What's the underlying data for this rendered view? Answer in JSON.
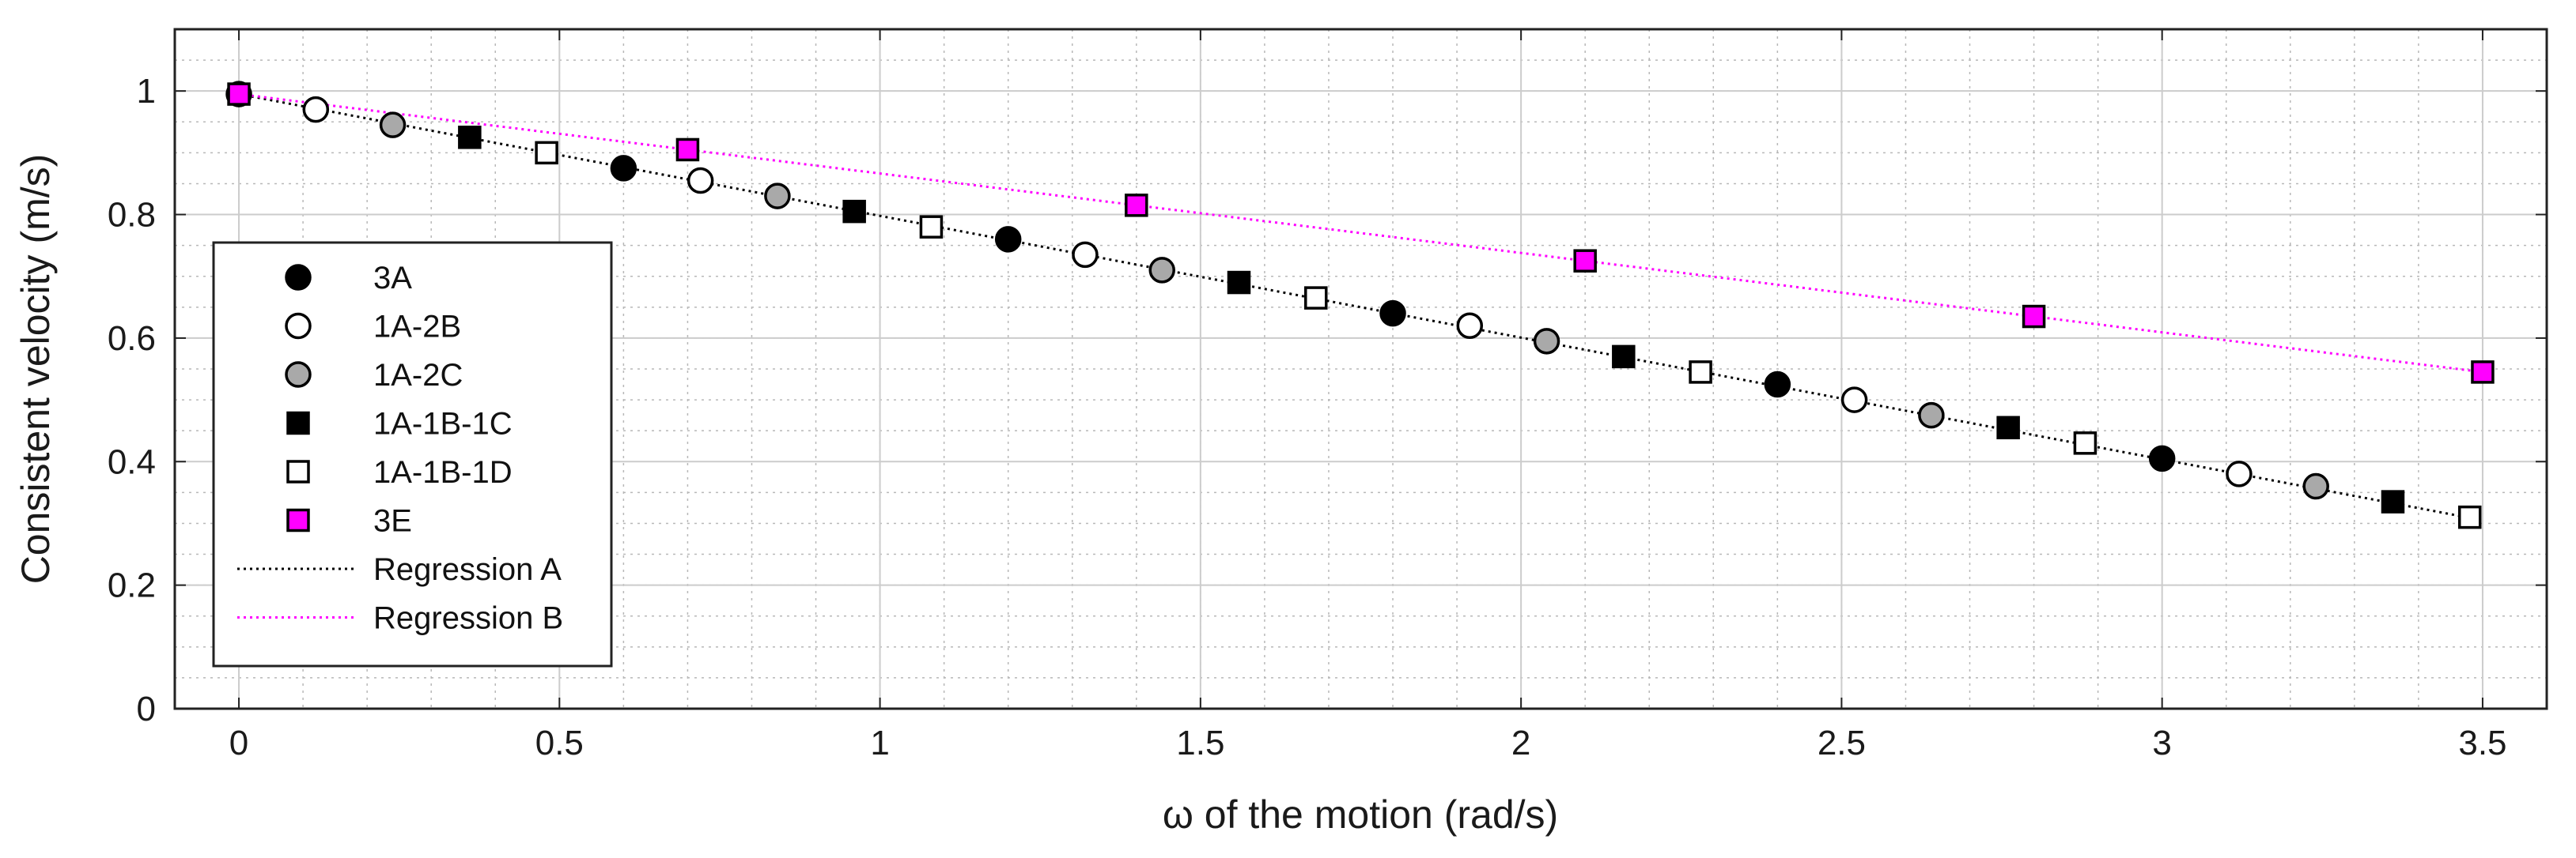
{
  "chart_data": {
    "type": "scatter",
    "xlabel": "ω of the motion (rad/s)",
    "ylabel": "Consistent velocity (m/s)",
    "xlim": [
      -0.1,
      3.6
    ],
    "ylim": [
      0,
      1.1
    ],
    "xticks": [
      0,
      0.5,
      1,
      1.5,
      2,
      2.5,
      3,
      3.5
    ],
    "xtick_labels": [
      "0",
      "0.5",
      "1",
      "1.5",
      "2",
      "2.5",
      "3",
      "3.5"
    ],
    "yticks": [
      0,
      0.2,
      0.4,
      0.6,
      0.8,
      1
    ],
    "ytick_labels": [
      "0",
      "0.2",
      "0.4",
      "0.6",
      "0.8",
      "1"
    ],
    "grid": true,
    "minor_grid": true,
    "legend_position": "left",
    "series": [
      {
        "name": "3A",
        "marker": "circle",
        "fill": "#000000",
        "x": [
          0,
          0.6,
          1.2,
          1.8,
          2.4,
          3.0
        ],
        "y": [
          0.995,
          0.875,
          0.76,
          0.64,
          0.525,
          0.405
        ]
      },
      {
        "name": "1A-2B",
        "marker": "circle",
        "fill": "#ffffff",
        "x": [
          0.12,
          0.72,
          1.32,
          1.92,
          2.52,
          3.12
        ],
        "y": [
          0.97,
          0.855,
          0.735,
          0.62,
          0.5,
          0.38
        ]
      },
      {
        "name": "1A-2C",
        "marker": "circle",
        "fill": "#a9a9a9",
        "x": [
          0.24,
          0.84,
          1.44,
          2.04,
          2.64,
          3.24
        ],
        "y": [
          0.945,
          0.83,
          0.71,
          0.595,
          0.475,
          0.36
        ]
      },
      {
        "name": "1A-1B-1C",
        "marker": "square",
        "fill": "#000000",
        "x": [
          0.36,
          0.96,
          1.56,
          2.16,
          2.76,
          3.36
        ],
        "y": [
          0.925,
          0.805,
          0.69,
          0.57,
          0.455,
          0.335
        ]
      },
      {
        "name": "1A-1B-1D",
        "marker": "square",
        "fill": "#ffffff",
        "x": [
          0.48,
          1.08,
          1.68,
          2.28,
          2.88,
          3.48
        ],
        "y": [
          0.9,
          0.78,
          0.665,
          0.545,
          0.43,
          0.31
        ]
      },
      {
        "name": "3E",
        "marker": "square",
        "fill": "#ff00ff",
        "x": [
          0,
          0.7,
          1.4,
          2.1,
          2.8,
          3.5
        ],
        "y": [
          0.995,
          0.905,
          0.815,
          0.725,
          0.635,
          0.545
        ]
      }
    ],
    "regressions": [
      {
        "name": "Regression A",
        "color": "#000000",
        "x": [
          0,
          3.5
        ],
        "y": [
          0.995,
          0.305
        ]
      },
      {
        "name": "Regression B",
        "color": "#ff00ff",
        "x": [
          0,
          3.5
        ],
        "y": [
          0.995,
          0.545
        ]
      }
    ]
  }
}
